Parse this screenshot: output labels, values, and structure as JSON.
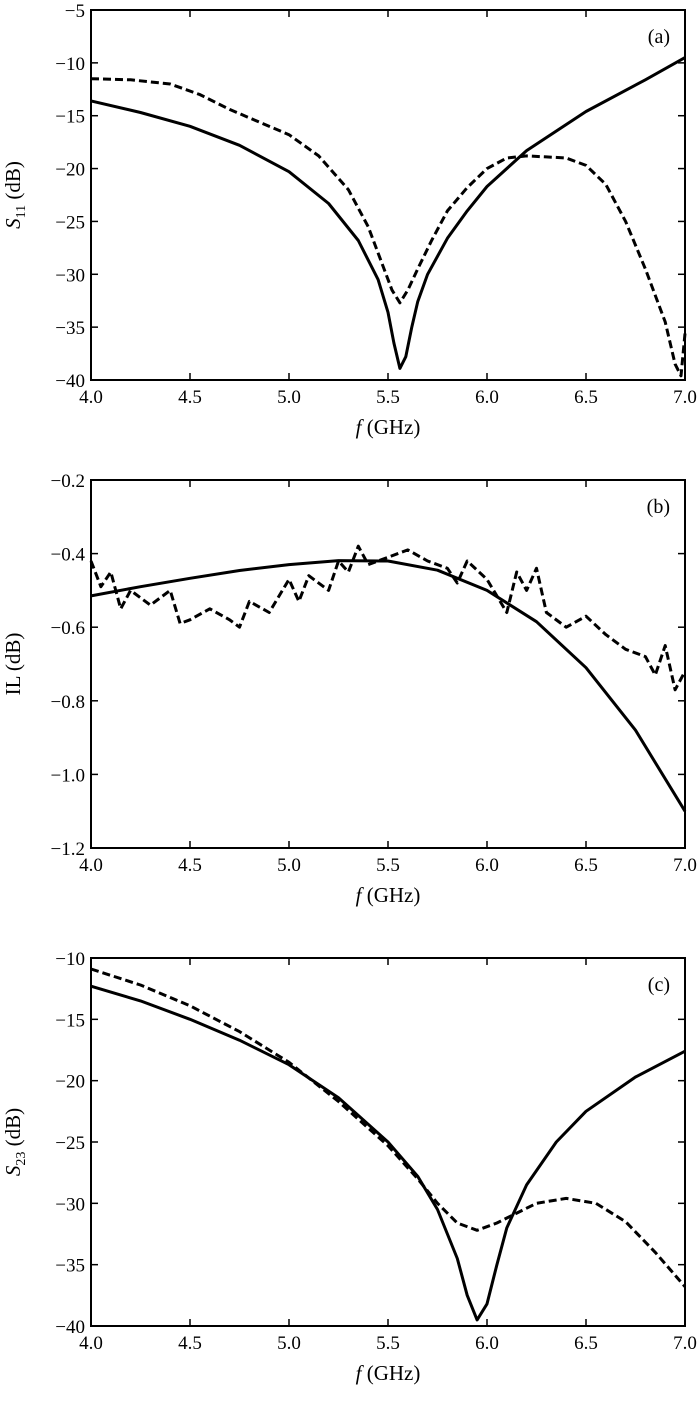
{
  "chart_data": [
    {
      "type": "line",
      "panel_label": "(a)",
      "xlabel_var": "f",
      "xlabel_unit": " (GHz)",
      "ylabel_var": "S",
      "ylabel_sub": "11",
      "ylabel_unit": " (dB)",
      "xlim": [
        4.0,
        7.0
      ],
      "ylim": [
        -40,
        -5
      ],
      "xticks": [
        4.0,
        4.5,
        5.0,
        5.5,
        6.0,
        6.5,
        7.0
      ],
      "xtick_labels": [
        "4.0",
        "4.5",
        "5.0",
        "5.5",
        "6.0",
        "6.5",
        "7.0"
      ],
      "yticks": [
        -5,
        -10,
        -15,
        -20,
        -25,
        -30,
        -35,
        -40
      ],
      "ytick_labels": [
        "−5",
        "−10",
        "−15",
        "−20",
        "−25",
        "−30",
        "−35",
        "−40"
      ],
      "series": [
        {
          "style": "solid",
          "x": [
            4.0,
            4.25,
            4.5,
            4.75,
            5.0,
            5.2,
            5.35,
            5.45,
            5.5,
            5.53,
            5.56,
            5.59,
            5.62,
            5.65,
            5.7,
            5.8,
            5.9,
            6.0,
            6.2,
            6.5,
            6.8,
            7.0
          ],
          "y": [
            -13.6,
            -14.7,
            -16.0,
            -17.8,
            -20.3,
            -23.3,
            -26.8,
            -30.5,
            -33.6,
            -36.5,
            -38.9,
            -37.8,
            -35.0,
            -32.6,
            -30.0,
            -26.6,
            -24.0,
            -21.7,
            -18.3,
            -14.6,
            -11.6,
            -9.5
          ]
        },
        {
          "style": "dashed",
          "x": [
            4.0,
            4.2,
            4.4,
            4.55,
            4.7,
            4.85,
            5.0,
            5.15,
            5.3,
            5.4,
            5.47,
            5.52,
            5.56,
            5.6,
            5.65,
            5.72,
            5.8,
            5.9,
            6.0,
            6.1,
            6.2,
            6.3,
            6.4,
            6.5,
            6.6,
            6.7,
            6.8,
            6.9,
            6.95,
            6.98,
            7.0
          ],
          "y": [
            -11.5,
            -11.6,
            -12.0,
            -13.0,
            -14.4,
            -15.6,
            -16.8,
            -18.8,
            -22.0,
            -25.5,
            -29.0,
            -31.5,
            -32.7,
            -31.5,
            -29.5,
            -26.8,
            -24.0,
            -21.8,
            -20.0,
            -19.0,
            -18.8,
            -18.9,
            -19.0,
            -19.7,
            -21.5,
            -25.0,
            -29.5,
            -34.5,
            -38.5,
            -39.6,
            -35.6
          ]
        }
      ]
    },
    {
      "type": "line",
      "panel_label": "(b)",
      "xlabel_var": "f",
      "xlabel_unit": " (GHz)",
      "ylabel_var": "IL",
      "ylabel_sub": "",
      "ylabel_unit": " (dB)",
      "xlim": [
        4.0,
        7.0
      ],
      "ylim": [
        -1.2,
        -0.2
      ],
      "xticks": [
        4.0,
        4.5,
        5.0,
        5.5,
        6.0,
        6.5,
        7.0
      ],
      "xtick_labels": [
        "4.0",
        "4.5",
        "5.0",
        "5.5",
        "6.0",
        "6.5",
        "7.0"
      ],
      "yticks": [
        -0.2,
        -0.4,
        -0.6,
        -0.8,
        -1.0,
        -1.2
      ],
      "ytick_labels": [
        "−0.2",
        "−0.4",
        "−0.6",
        "−0.8",
        "−1.0",
        "−1.2"
      ],
      "series": [
        {
          "style": "solid",
          "x": [
            4.0,
            4.25,
            4.5,
            4.75,
            5.0,
            5.25,
            5.5,
            5.75,
            6.0,
            6.25,
            6.5,
            6.75,
            7.0
          ],
          "y": [
            -0.515,
            -0.49,
            -0.467,
            -0.446,
            -0.43,
            -0.419,
            -0.42,
            -0.445,
            -0.5,
            -0.585,
            -0.71,
            -0.88,
            -1.1
          ]
        },
        {
          "style": "dashed",
          "x": [
            4.0,
            4.05,
            4.1,
            4.15,
            4.2,
            4.3,
            4.4,
            4.45,
            4.5,
            4.6,
            4.7,
            4.75,
            4.8,
            4.9,
            5.0,
            5.05,
            5.1,
            5.2,
            5.25,
            5.3,
            5.35,
            5.4,
            5.5,
            5.6,
            5.7,
            5.8,
            5.85,
            5.9,
            6.0,
            6.1,
            6.15,
            6.2,
            6.25,
            6.3,
            6.4,
            6.5,
            6.6,
            6.7,
            6.8,
            6.85,
            6.9,
            6.95,
            7.0
          ],
          "y": [
            -0.42,
            -0.49,
            -0.45,
            -0.55,
            -0.5,
            -0.54,
            -0.5,
            -0.59,
            -0.58,
            -0.55,
            -0.58,
            -0.6,
            -0.53,
            -0.56,
            -0.47,
            -0.53,
            -0.46,
            -0.5,
            -0.42,
            -0.45,
            -0.38,
            -0.43,
            -0.41,
            -0.39,
            -0.42,
            -0.44,
            -0.48,
            -0.42,
            -0.47,
            -0.56,
            -0.45,
            -0.5,
            -0.44,
            -0.56,
            -0.6,
            -0.57,
            -0.62,
            -0.66,
            -0.68,
            -0.73,
            -0.65,
            -0.77,
            -0.72
          ]
        }
      ]
    },
    {
      "type": "line",
      "panel_label": "(c)",
      "xlabel_var": "f",
      "xlabel_unit": " (GHz)",
      "ylabel_var": "S",
      "ylabel_sub": "23",
      "ylabel_unit": " (dB)",
      "xlim": [
        4.0,
        7.0
      ],
      "ylim": [
        -40,
        -10
      ],
      "xticks": [
        4.0,
        4.5,
        5.0,
        5.5,
        6.0,
        6.5,
        7.0
      ],
      "xtick_labels": [
        "4.0",
        "4.5",
        "5.0",
        "5.5",
        "6.0",
        "6.5",
        "7.0"
      ],
      "yticks": [
        -10,
        -15,
        -20,
        -25,
        -30,
        -35,
        -40
      ],
      "ytick_labels": [
        "−10",
        "−15",
        "−20",
        "−25",
        "−30",
        "−35",
        "−40"
      ],
      "series": [
        {
          "style": "solid",
          "x": [
            4.0,
            4.25,
            4.5,
            4.75,
            5.0,
            5.25,
            5.5,
            5.65,
            5.75,
            5.85,
            5.9,
            5.95,
            6.0,
            6.05,
            6.1,
            6.2,
            6.35,
            6.5,
            6.75,
            7.0
          ],
          "y": [
            -12.3,
            -13.5,
            -15.0,
            -16.7,
            -18.7,
            -21.4,
            -25.0,
            -27.8,
            -30.5,
            -34.5,
            -37.5,
            -39.5,
            -38.2,
            -35.0,
            -32.0,
            -28.5,
            -25.0,
            -22.5,
            -19.7,
            -17.6
          ]
        },
        {
          "style": "dashed",
          "x": [
            4.0,
            4.25,
            4.5,
            4.75,
            5.0,
            5.25,
            5.5,
            5.65,
            5.75,
            5.85,
            5.95,
            6.05,
            6.15,
            6.25,
            6.4,
            6.55,
            6.7,
            6.85,
            7.0
          ],
          "y": [
            -10.9,
            -12.2,
            -13.9,
            -16.0,
            -18.5,
            -21.7,
            -25.3,
            -28.0,
            -30.0,
            -31.6,
            -32.2,
            -31.6,
            -30.8,
            -30.0,
            -29.6,
            -30.0,
            -31.5,
            -34.0,
            -36.8
          ]
        }
      ]
    }
  ]
}
